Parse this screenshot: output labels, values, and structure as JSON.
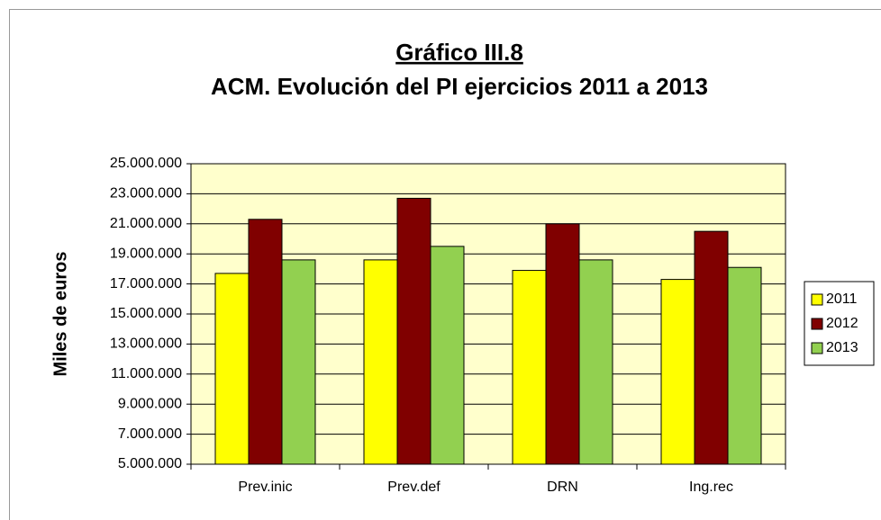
{
  "chart_data": {
    "type": "bar",
    "title": "Gráfico III.8",
    "subtitle": "ACM. Evolución del PI ejercicios 2011 a 2013",
    "y_label": "Miles de euros",
    "categories": [
      "Prev.inic",
      "Prev.def",
      "DRN",
      "Ing.rec"
    ],
    "series": [
      {
        "name": "2011",
        "color": "#ffff00",
        "values": [
          17700000,
          18600000,
          17900000,
          17300000
        ]
      },
      {
        "name": "2012",
        "color": "#800000",
        "values": [
          21300000,
          22700000,
          21000000,
          20500000
        ]
      },
      {
        "name": "2013",
        "color": "#92d050",
        "values": [
          18600000,
          19500000,
          18600000,
          18100000
        ]
      }
    ],
    "ylim": [
      5000000,
      25000000
    ],
    "yticks": [
      {
        "value": 5000000,
        "label": "5.000.000"
      },
      {
        "value": 7000000,
        "label": "7.000.000"
      },
      {
        "value": 9000000,
        "label": "9.000.000"
      },
      {
        "value": 11000000,
        "label": "11.000.000"
      },
      {
        "value": 13000000,
        "label": "13.000.000"
      },
      {
        "value": 15000000,
        "label": "15.000.000"
      },
      {
        "value": 17000000,
        "label": "17.000.000"
      },
      {
        "value": 19000000,
        "label": "19.000.000"
      },
      {
        "value": 21000000,
        "label": "21.000.000"
      },
      {
        "value": 23000000,
        "label": "23.000.000"
      },
      {
        "value": 25000000,
        "label": "25.000.000"
      }
    ],
    "grid": true,
    "legend": "right"
  }
}
